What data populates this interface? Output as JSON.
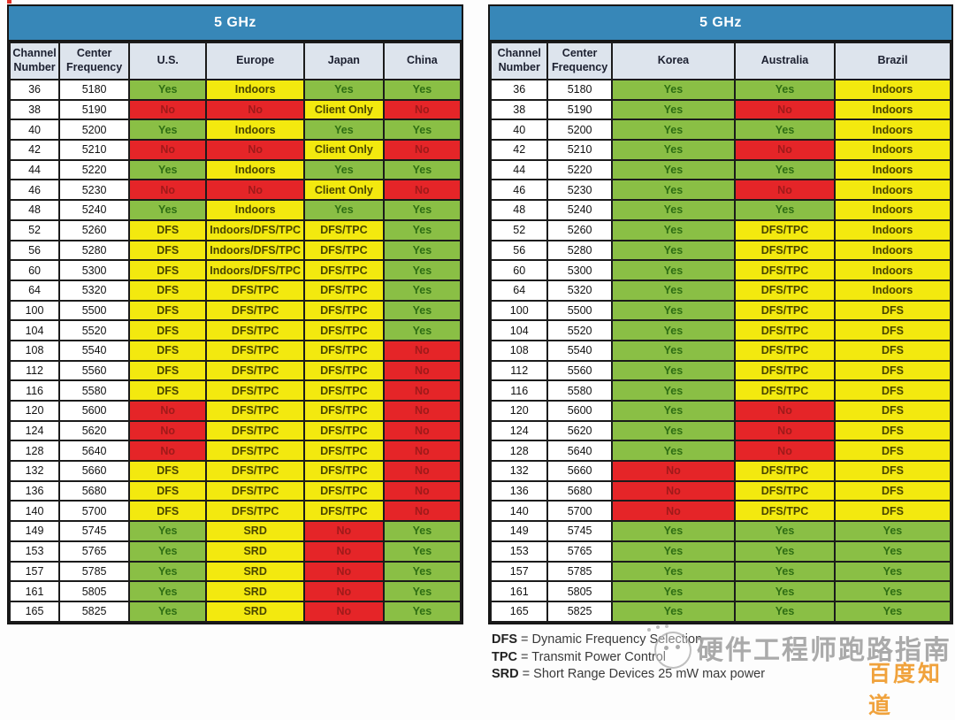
{
  "tables": [
    {
      "title": "5 GHz",
      "columns": [
        "Channel Number",
        "Center Frequency",
        "U.S.",
        "Europe",
        "Japan",
        "China"
      ],
      "rows": [
        [
          "36",
          "5180",
          "Yes",
          "Indoors",
          "Yes",
          "Yes"
        ],
        [
          "38",
          "5190",
          "No",
          "No",
          "Client Only",
          "No"
        ],
        [
          "40",
          "5200",
          "Yes",
          "Indoors",
          "Yes",
          "Yes"
        ],
        [
          "42",
          "5210",
          "No",
          "No",
          "Client Only",
          "No"
        ],
        [
          "44",
          "5220",
          "Yes",
          "Indoors",
          "Yes",
          "Yes"
        ],
        [
          "46",
          "5230",
          "No",
          "No",
          "Client Only",
          "No"
        ],
        [
          "48",
          "5240",
          "Yes",
          "Indoors",
          "Yes",
          "Yes"
        ],
        [
          "52",
          "5260",
          "DFS",
          "Indoors/DFS/TPC",
          "DFS/TPC",
          "Yes"
        ],
        [
          "56",
          "5280",
          "DFS",
          "Indoors/DFS/TPC",
          "DFS/TPC",
          "Yes"
        ],
        [
          "60",
          "5300",
          "DFS",
          "Indoors/DFS/TPC",
          "DFS/TPC",
          "Yes"
        ],
        [
          "64",
          "5320",
          "DFS",
          "DFS/TPC",
          "DFS/TPC",
          "Yes"
        ],
        [
          "100",
          "5500",
          "DFS",
          "DFS/TPC",
          "DFS/TPC",
          "Yes"
        ],
        [
          "104",
          "5520",
          "DFS",
          "DFS/TPC",
          "DFS/TPC",
          "Yes"
        ],
        [
          "108",
          "5540",
          "DFS",
          "DFS/TPC",
          "DFS/TPC",
          "No"
        ],
        [
          "112",
          "5560",
          "DFS",
          "DFS/TPC",
          "DFS/TPC",
          "No"
        ],
        [
          "116",
          "5580",
          "DFS",
          "DFS/TPC",
          "DFS/TPC",
          "No"
        ],
        [
          "120",
          "5600",
          "No",
          "DFS/TPC",
          "DFS/TPC",
          "No"
        ],
        [
          "124",
          "5620",
          "No",
          "DFS/TPC",
          "DFS/TPC",
          "No"
        ],
        [
          "128",
          "5640",
          "No",
          "DFS/TPC",
          "DFS/TPC",
          "No"
        ],
        [
          "132",
          "5660",
          "DFS",
          "DFS/TPC",
          "DFS/TPC",
          "No"
        ],
        [
          "136",
          "5680",
          "DFS",
          "DFS/TPC",
          "DFS/TPC",
          "No"
        ],
        [
          "140",
          "5700",
          "DFS",
          "DFS/TPC",
          "DFS/TPC",
          "No"
        ],
        [
          "149",
          "5745",
          "Yes",
          "SRD",
          "No",
          "Yes"
        ],
        [
          "153",
          "5765",
          "Yes",
          "SRD",
          "No",
          "Yes"
        ],
        [
          "157",
          "5785",
          "Yes",
          "SRD",
          "No",
          "Yes"
        ],
        [
          "161",
          "5805",
          "Yes",
          "SRD",
          "No",
          "Yes"
        ],
        [
          "165",
          "5825",
          "Yes",
          "SRD",
          "No",
          "Yes"
        ]
      ]
    },
    {
      "title": "5 GHz",
      "columns": [
        "Channel Number",
        "Center Frequency",
        "Korea",
        "Australia",
        "Brazil"
      ],
      "rows": [
        [
          "36",
          "5180",
          "Yes",
          "Yes",
          "Indoors"
        ],
        [
          "38",
          "5190",
          "Yes",
          "No",
          "Indoors"
        ],
        [
          "40",
          "5200",
          "Yes",
          "Yes",
          "Indoors"
        ],
        [
          "42",
          "5210",
          "Yes",
          "No",
          "Indoors"
        ],
        [
          "44",
          "5220",
          "Yes",
          "Yes",
          "Indoors"
        ],
        [
          "46",
          "5230",
          "Yes",
          "No",
          "Indoors"
        ],
        [
          "48",
          "5240",
          "Yes",
          "Yes",
          "Indoors"
        ],
        [
          "52",
          "5260",
          "Yes",
          "DFS/TPC",
          "Indoors"
        ],
        [
          "56",
          "5280",
          "Yes",
          "DFS/TPC",
          "Indoors"
        ],
        [
          "60",
          "5300",
          "Yes",
          "DFS/TPC",
          "Indoors"
        ],
        [
          "64",
          "5320",
          "Yes",
          "DFS/TPC",
          "Indoors"
        ],
        [
          "100",
          "5500",
          "Yes",
          "DFS/TPC",
          "DFS"
        ],
        [
          "104",
          "5520",
          "Yes",
          "DFS/TPC",
          "DFS"
        ],
        [
          "108",
          "5540",
          "Yes",
          "DFS/TPC",
          "DFS"
        ],
        [
          "112",
          "5560",
          "Yes",
          "DFS/TPC",
          "DFS"
        ],
        [
          "116",
          "5580",
          "Yes",
          "DFS/TPC",
          "DFS"
        ],
        [
          "120",
          "5600",
          "Yes",
          "No",
          "DFS"
        ],
        [
          "124",
          "5620",
          "Yes",
          "No",
          "DFS"
        ],
        [
          "128",
          "5640",
          "Yes",
          "No",
          "DFS"
        ],
        [
          "132",
          "5660",
          "No",
          "DFS/TPC",
          "DFS"
        ],
        [
          "136",
          "5680",
          "No",
          "DFS/TPC",
          "DFS"
        ],
        [
          "140",
          "5700",
          "No",
          "DFS/TPC",
          "DFS"
        ],
        [
          "149",
          "5745",
          "Yes",
          "Yes",
          "Yes"
        ],
        [
          "153",
          "5765",
          "Yes",
          "Yes",
          "Yes"
        ],
        [
          "157",
          "5785",
          "Yes",
          "Yes",
          "Yes"
        ],
        [
          "161",
          "5805",
          "Yes",
          "Yes",
          "Yes"
        ],
        [
          "165",
          "5825",
          "Yes",
          "Yes",
          "Yes"
        ]
      ]
    }
  ],
  "legend": {
    "lines": [
      {
        "abbr": "DFS",
        "definition": "Dynamic Frequency Selection"
      },
      {
        "abbr": "TPC",
        "definition": "Transmit Power Control"
      },
      {
        "abbr": "SRD",
        "definition": "Short Range Devices 25 mW max power"
      }
    ]
  },
  "watermark": {
    "text": "硬件工程师跑路指南",
    "badge": "百度知道"
  },
  "colors": {
    "title_blue": "#3787b8",
    "column_header_bg": "#dde4ed",
    "yes_green": "#8abf45",
    "no_red": "#e52528",
    "conditional_yellow": "#f3e90f"
  }
}
